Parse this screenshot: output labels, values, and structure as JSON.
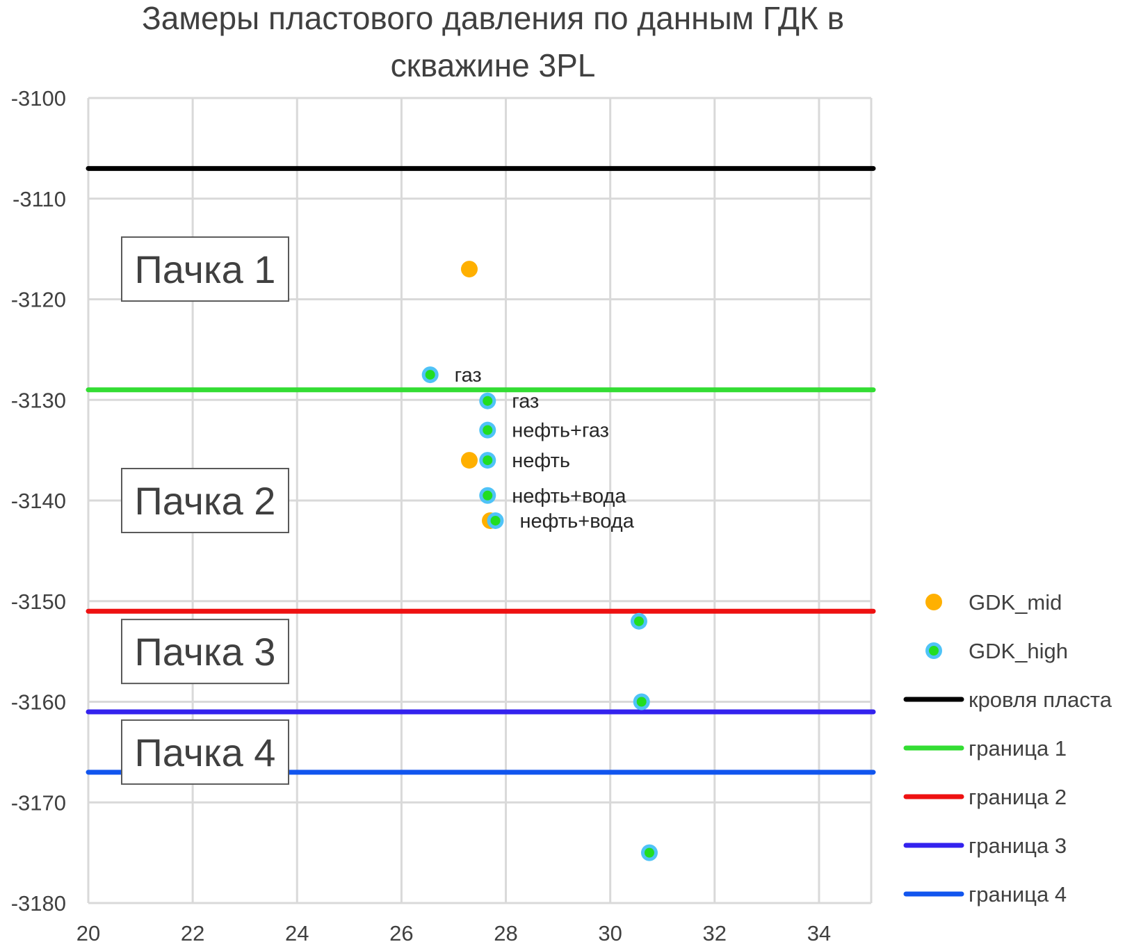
{
  "chart_data": {
    "type": "scatter",
    "title_lines": [
      "Замеры пластового давления по данным ГДК в",
      "скважине 3PL"
    ],
    "xlim": [
      20,
      35
    ],
    "ylim": [
      -3180,
      -3100
    ],
    "x_ticks": [
      20,
      22,
      24,
      26,
      28,
      30,
      32,
      34
    ],
    "y_ticks": [
      -3100,
      -3110,
      -3120,
      -3130,
      -3140,
      -3150,
      -3160,
      -3170,
      -3180
    ],
    "grid": true,
    "legend_position": "right",
    "series": [
      {
        "name": "GDK_mid",
        "kind": "points",
        "color": "#FFB000",
        "points": [
          {
            "x": 27.3,
            "y": -3117
          },
          {
            "x": 27.3,
            "y": -3136
          },
          {
            "x": 27.7,
            "y": -3142
          }
        ]
      },
      {
        "name": "GDK_high",
        "kind": "points",
        "color": "#4FC3F7",
        "inner_color": "#22DD22",
        "points": [
          {
            "x": 26.55,
            "y": -3127.5
          },
          {
            "x": 27.65,
            "y": -3130.1
          },
          {
            "x": 27.65,
            "y": -3133
          },
          {
            "x": 27.65,
            "y": -3136
          },
          {
            "x": 27.65,
            "y": -3139.5
          },
          {
            "x": 27.8,
            "y": -3142
          },
          {
            "x": 30.55,
            "y": -3152
          },
          {
            "x": 30.6,
            "y": -3160
          },
          {
            "x": 30.75,
            "y": -3175
          }
        ]
      },
      {
        "name": "кровля пласта",
        "kind": "hline",
        "y": -3107,
        "color": "#000000"
      },
      {
        "name": "граница 1",
        "kind": "hline",
        "y": -3129,
        "color": "#33DD33"
      },
      {
        "name": "граница 2",
        "kind": "hline",
        "y": -3151,
        "color": "#EE1111"
      },
      {
        "name": "граница 3",
        "kind": "hline",
        "y": -3161,
        "color": "#3322EE"
      },
      {
        "name": "граница 4",
        "kind": "hline",
        "y": -3167,
        "color": "#1155EE"
      }
    ],
    "annotations": [
      {
        "text": "газ",
        "x": 26.55,
        "y": -3127.5
      },
      {
        "text": "газ",
        "x": 27.65,
        "y": -3130.1
      },
      {
        "text": "нефть+газ",
        "x": 27.65,
        "y": -3133
      },
      {
        "text": "нефть",
        "x": 27.65,
        "y": -3136
      },
      {
        "text": "нефть+вода",
        "x": 27.65,
        "y": -3139.5
      },
      {
        "text": "нефть+вода",
        "x": 27.8,
        "y": -3142
      }
    ],
    "packs": [
      {
        "text": "Пачка 1",
        "y": -3117
      },
      {
        "text": "Пачка 2",
        "y": -3140
      },
      {
        "text": "Пачка 3",
        "y": -3155
      },
      {
        "text": "Пачка 4",
        "y": -3165
      }
    ]
  }
}
